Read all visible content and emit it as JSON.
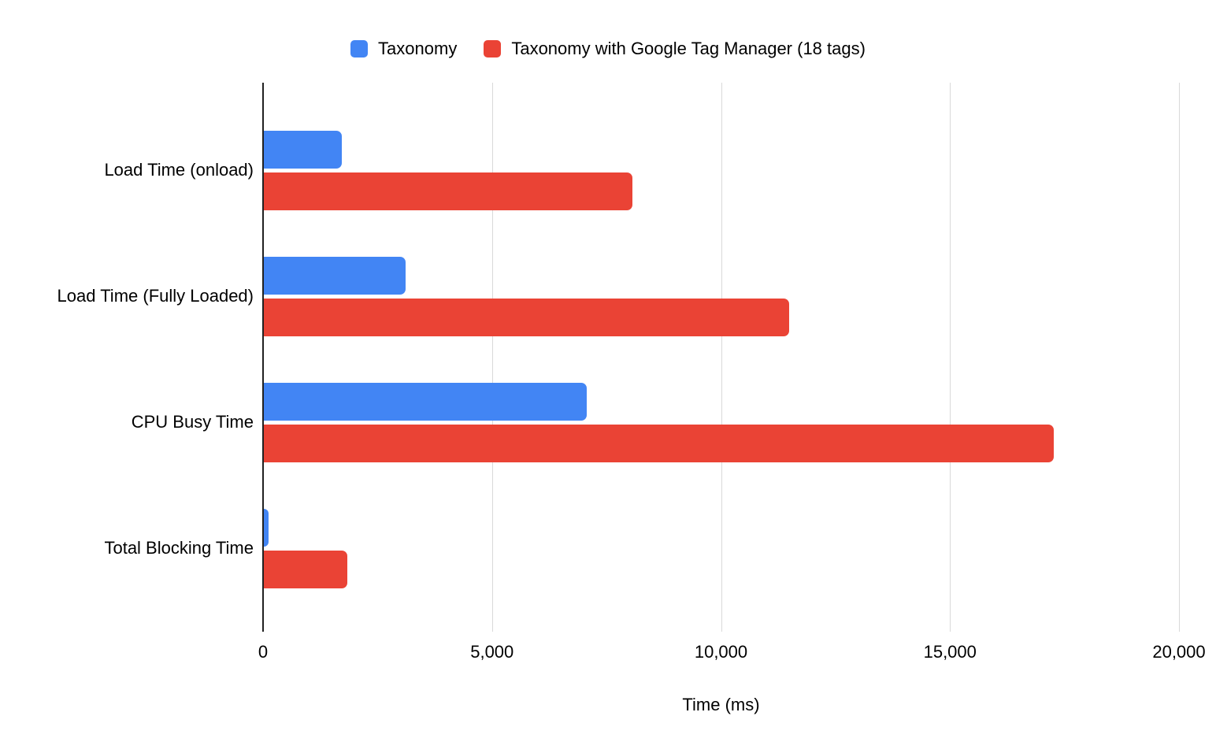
{
  "legend": {
    "items": [
      {
        "label": "Taxonomy",
        "color": "#4285F4",
        "icon": "legend-swatch-blue-icon"
      },
      {
        "label": "Taxonomy with Google Tag Manager (18 tags)",
        "color": "#EA4335",
        "icon": "legend-swatch-red-icon"
      }
    ]
  },
  "chart_data": {
    "type": "bar",
    "orientation": "horizontal",
    "title": "",
    "categories": [
      "Load Time (onload)",
      "Load Time (Fully Loaded)",
      "CPU Busy Time",
      "Total Blocking Time"
    ],
    "series": [
      {
        "name": "Taxonomy",
        "color": "#4285F4",
        "values": [
          1700,
          3100,
          7050,
          100
        ]
      },
      {
        "name": "Taxonomy with Google Tag Manager (18 tags)",
        "color": "#EA4335",
        "values": [
          8050,
          11470,
          17240,
          1830
        ]
      }
    ],
    "xlabel": "Time (ms)",
    "ylabel": "",
    "xlim": [
      0,
      20000
    ],
    "x_ticks": [
      0,
      5000,
      10000,
      15000,
      20000
    ],
    "x_tick_labels": [
      "0",
      "5,000",
      "10,000",
      "15,000",
      "20,000"
    ],
    "grid": true,
    "legend_position": "top",
    "colors": {
      "background": "#FFFFFF",
      "axis_line": "#212121",
      "gridline": "#D9D9D9",
      "text": "#000000"
    }
  }
}
